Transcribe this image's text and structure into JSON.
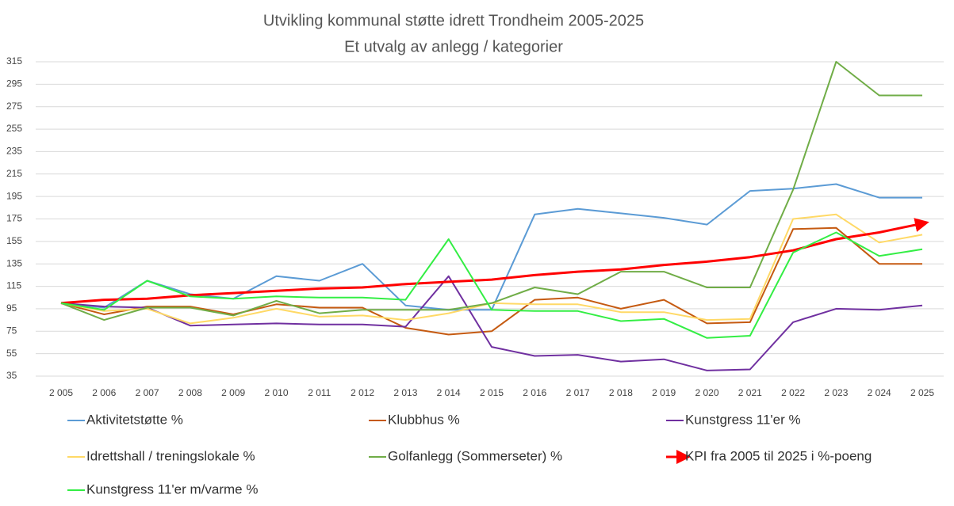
{
  "chart_data": {
    "type": "line",
    "title": "Utvikling kommunal støtte idrett Trondheim 2005-2025",
    "subtitle": "Et utvalg av anlegg / kategorier",
    "categories": [
      "2 005",
      "2 006",
      "2 007",
      "2 008",
      "2 009",
      "2 010",
      "2 011",
      "2 012",
      "2 013",
      "2 014",
      "2 015",
      "2 016",
      "2 017",
      "2 018",
      "2 019",
      "2 020",
      "2 021",
      "2 022",
      "2 023",
      "2 024",
      "2 025"
    ],
    "series": [
      {
        "name": "Aktivitetstøtte %",
        "color": "#5b9bd5",
        "values": [
          100,
          96,
          120,
          108,
          104,
          124,
          120,
          135,
          98,
          94,
          94,
          179,
          184,
          180,
          176,
          170,
          200,
          202,
          206,
          194,
          194
        ]
      },
      {
        "name": "Klubbhus %",
        "color": "#c55a11",
        "values": [
          100,
          90,
          97,
          97,
          90,
          99,
          96,
          96,
          78,
          72,
          75,
          103,
          105,
          95,
          103,
          82,
          83,
          166,
          167,
          135,
          135
        ]
      },
      {
        "name": "Kunstgress 11'er  %",
        "color": "#7030a0",
        "values": [
          100,
          97,
          96,
          80,
          81,
          82,
          81,
          81,
          79,
          124,
          61,
          53,
          54,
          48,
          50,
          40,
          41,
          83,
          95,
          94,
          98
        ]
      },
      {
        "name": "Idrettshall / treningslokale %",
        "color": "#ffd966",
        "values": [
          100,
          93,
          95,
          82,
          87,
          95,
          88,
          89,
          85,
          91,
          100,
          99,
          99,
          92,
          92,
          85,
          86,
          175,
          179,
          154,
          161
        ]
      },
      {
        "name": "Golfanlegg (Sommerseter) %",
        "color": "#70ad47",
        "values": [
          100,
          85,
          96,
          96,
          89,
          102,
          91,
          94,
          94,
          94,
          100,
          114,
          108,
          128,
          128,
          114,
          114,
          201,
          315,
          285,
          285
        ]
      },
      {
        "name": "KPI fra 2005 til 2025 i %-poeng",
        "color": "#ff0000",
        "end_marker": "arrow",
        "values": [
          100,
          103,
          104,
          107,
          109,
          111,
          113,
          114,
          117,
          119,
          121,
          125,
          128,
          130,
          134,
          137,
          141,
          147,
          157,
          163,
          171
        ]
      },
      {
        "name": "Kunstgress 11'er m/varme  %",
        "color": "#33ee44",
        "values": [
          100,
          94,
          120,
          106,
          104,
          106,
          105,
          105,
          103,
          157,
          94,
          93,
          93,
          84,
          86,
          69,
          71,
          145,
          163,
          142,
          148
        ]
      }
    ],
    "ylim": [
      35,
      315
    ],
    "yticks": [
      35,
      55,
      75,
      95,
      115,
      135,
      155,
      175,
      195,
      215,
      235,
      255,
      275,
      295,
      315
    ],
    "grid": true,
    "legend": "bottom"
  }
}
